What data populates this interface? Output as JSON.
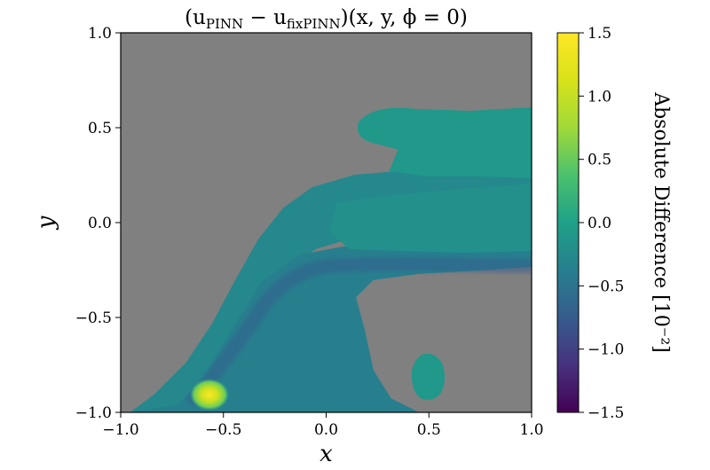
{
  "chart_data": {
    "type": "heatmap",
    "title": "(u_PINN − u_fixPINN)(x, y, ϕ = 0)",
    "title_parts": {
      "open": "(u",
      "sub1": "PINN",
      "minus": " − u",
      "sub2": "fixPINN",
      "rest": ")(x, y, ϕ = 0)"
    },
    "xlabel": "x",
    "ylabel": "y",
    "xlim": [
      -1.0,
      1.0
    ],
    "ylim": [
      -1.0,
      1.0
    ],
    "x_ticks": [
      -1.0,
      -0.5,
      0.0,
      0.5,
      1.0
    ],
    "x_tick_labels": [
      "−1.0",
      "−0.5",
      "0.0",
      "0.5",
      "1.0"
    ],
    "y_ticks": [
      -1.0,
      -0.5,
      0.0,
      0.5,
      1.0
    ],
    "y_tick_labels": [
      "−1.0",
      "−0.5",
      "0.0",
      "0.5",
      "1.0"
    ],
    "colorbar": {
      "label": "Absolute Difference [10⁻²]",
      "colormap": "viridis",
      "range": [
        -1.5,
        1.5
      ],
      "ticks": [
        1.5,
        1.0,
        0.5,
        0.0,
        -0.5,
        -1.0,
        -1.5
      ],
      "tick_labels": [
        "1.5",
        "1.0",
        "0.5",
        "0.0",
        "−0.5",
        "−1.0",
        "−1.5"
      ]
    },
    "masked_color": "#808080",
    "regions": [
      {
        "name": "lower-left plume",
        "value": -0.2
      },
      {
        "name": "upper band",
        "value": -0.1
      },
      {
        "name": "right jet",
        "value": 0.0
      },
      {
        "name": "top blob",
        "value": 0.1
      },
      {
        "name": "lower-right island",
        "value": 0.1
      },
      {
        "name": "lower-left peak",
        "value": 1.5
      }
    ],
    "grid": false
  }
}
